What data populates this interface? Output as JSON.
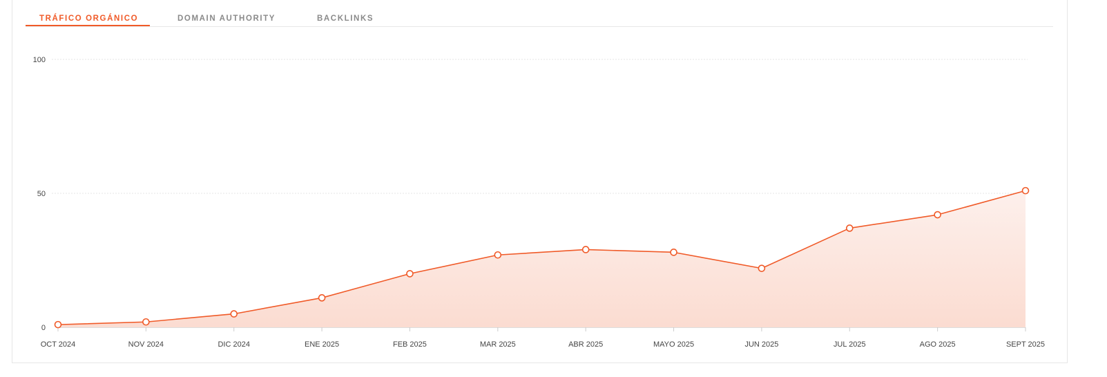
{
  "tabs": [
    {
      "label": "TRÁFICO ORGÁNICO",
      "active": true
    },
    {
      "label": "DOMAIN AUTHORITY",
      "active": false
    },
    {
      "label": "BACKLINKS",
      "active": false
    }
  ],
  "colors": {
    "accent": "#f05a28",
    "tab_inactive": "#8a8a8a",
    "grid": "#e5e5e5",
    "fill_top": "#fdf0ec",
    "fill_bottom": "#fbdcd1"
  },
  "chart_data": {
    "type": "area",
    "title": "",
    "xlabel": "",
    "ylabel": "",
    "categories": [
      "OCT 2024",
      "NOV 2024",
      "DIC 2024",
      "ENE 2025",
      "FEB 2025",
      "MAR 2025",
      "ABR 2025",
      "MAYO 2025",
      "JUN 2025",
      "JUL 2025",
      "AGO 2025",
      "SEPT 2025"
    ],
    "values": [
      1,
      2,
      5,
      11,
      20,
      27,
      29,
      28,
      22,
      37,
      42,
      51
    ],
    "ylim": [
      0,
      100
    ],
    "yticks": [
      0,
      50,
      100
    ],
    "grid": true,
    "legend": "none"
  }
}
